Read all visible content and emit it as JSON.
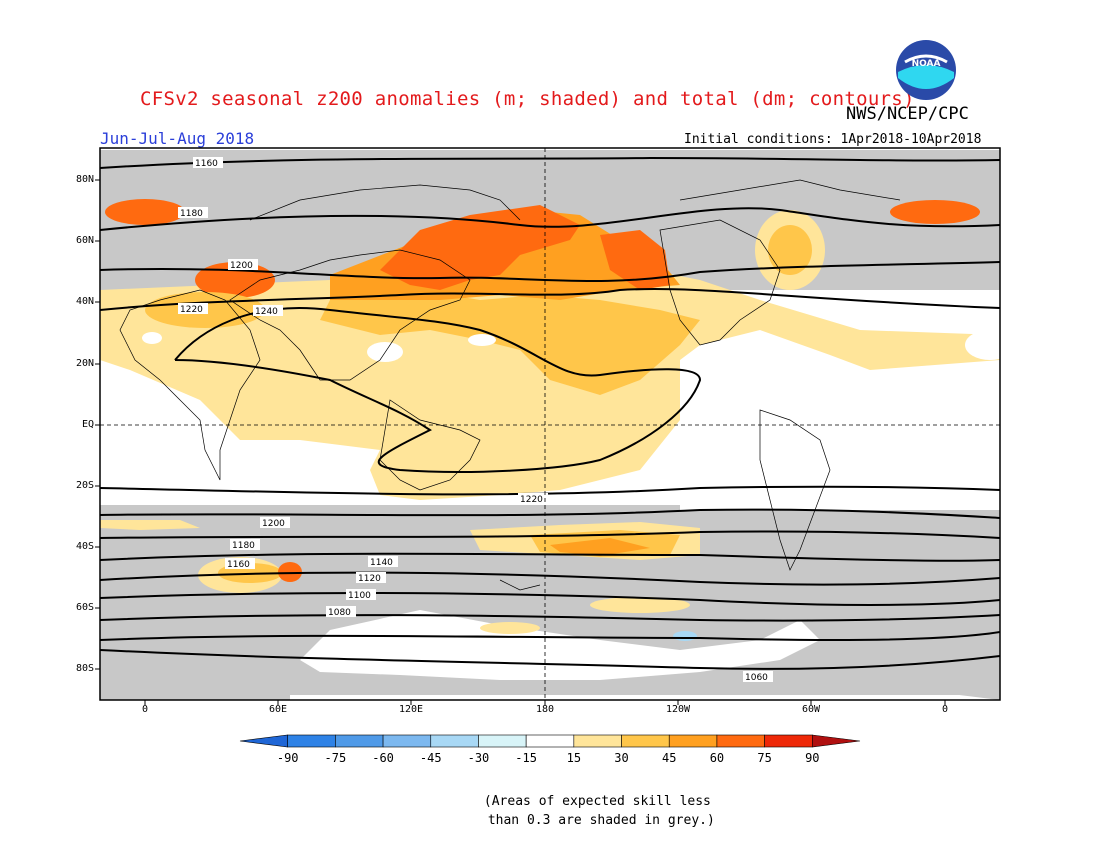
{
  "header": {
    "title": "CFSv2 seasonal z200 anomalies (m; shaded) and total (dm; contours)",
    "agency": "NWS/NCEP/CPC",
    "season": "Jun-Jul-Aug 2018",
    "initial_conditions": "Initial conditions: 1Apr2018-10Apr2018"
  },
  "logo": {
    "name": "noaa-logo",
    "text": "NOAA"
  },
  "axes": {
    "lat_ticks": [
      "80N",
      "60N",
      "40N",
      "20N",
      "EQ",
      "20S",
      "40S",
      "60S",
      "80S"
    ],
    "lon_ticks": [
      "0",
      "60E",
      "120E",
      "180",
      "120W",
      "60W",
      "0"
    ]
  },
  "colorbar": {
    "ticks": [
      "-90",
      "-75",
      "-60",
      "-45",
      "-30",
      "-15",
      "15",
      "30",
      "45",
      "60",
      "75",
      "90"
    ],
    "colors": [
      "#1f66d6",
      "#2e82e6",
      "#4f9ae8",
      "#7cb8ef",
      "#a8d8f5",
      "#d8f4f8",
      "#ffffff",
      "#ffe59a",
      "#ffc64a",
      "#ffa020",
      "#ff6a10",
      "#ee2808",
      "#b01010"
    ]
  },
  "map_colors": {
    "grey_low_skill": "#c8c8c8",
    "light_yellow": "#ffe59a",
    "yellow": "#ffc64a",
    "orange": "#ffa020",
    "dark_orange": "#ff6a10",
    "red": "#ee2808"
  },
  "contours": {
    "labels": [
      "1160",
      "1180",
      "1200",
      "1220",
      "1240",
      "1220",
      "1200",
      "1180",
      "1160",
      "1140",
      "1120",
      "1100",
      "1080",
      "1060"
    ]
  },
  "footnote": "(Areas of expected skill less\n than 0.3 are shaded in grey.)"
}
